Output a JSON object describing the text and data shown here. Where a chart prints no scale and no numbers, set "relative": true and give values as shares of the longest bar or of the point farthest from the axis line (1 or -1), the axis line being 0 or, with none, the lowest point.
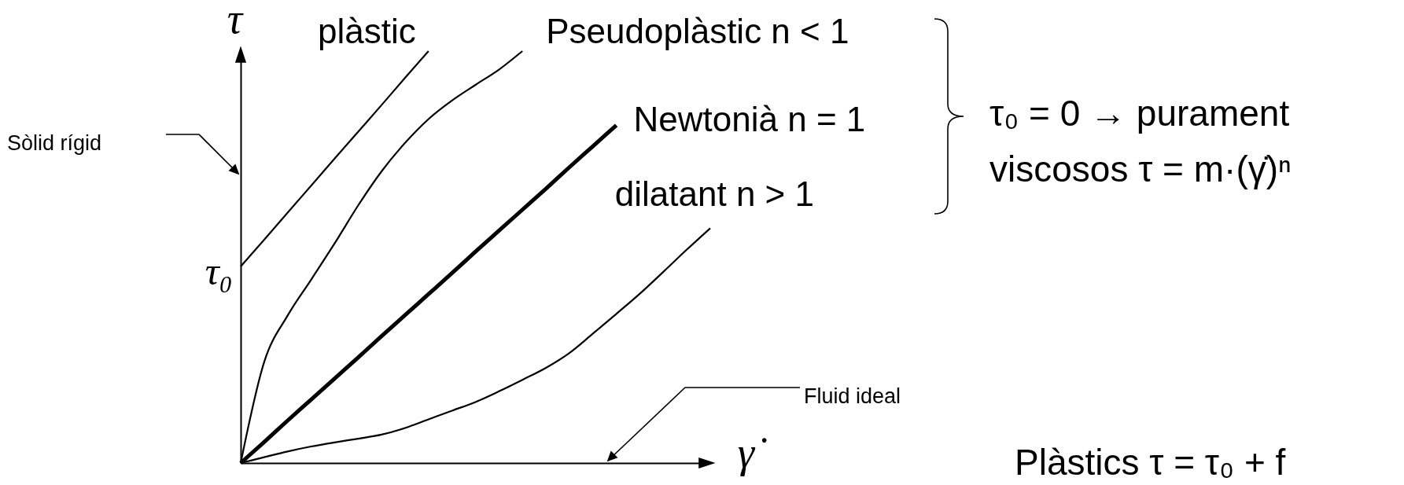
{
  "chart_data": {
    "type": "line",
    "xlabel": "γ̇",
    "ylabel": "τ",
    "relative": true,
    "tick_labels": false,
    "categories": [
      null,
      null,
      null,
      null,
      null,
      null,
      null,
      null,
      null,
      null,
      null,
      null,
      null,
      null,
      null,
      null,
      null,
      null,
      null,
      null,
      null
    ],
    "series": [
      {
        "name": "plàstic",
        "color": "#000000",
        "values": [
          0.477,
          0.542,
          0.608,
          0.673,
          0.739,
          0.804,
          0.869,
          0.935,
          1.0,
          null,
          null,
          null,
          null,
          null,
          null,
          null,
          null,
          null,
          null,
          null,
          null
        ]
      },
      {
        "name": "Pseudoplàstic n < 1",
        "color": "#000000",
        "values": [
          0,
          0.245,
          0.358,
          0.445,
          0.533,
          0.625,
          0.708,
          0.777,
          0.835,
          0.88,
          0.918,
          0.955,
          1.0,
          null,
          null,
          null,
          null,
          null,
          null,
          null,
          null
        ]
      },
      {
        "name": "Newtonià n = 1",
        "color": "#000000",
        "values": [
          0,
          0.051,
          0.103,
          0.154,
          0.205,
          0.256,
          0.308,
          0.359,
          0.41,
          0.461,
          0.513,
          0.564,
          0.615,
          0.666,
          0.718,
          0.769,
          0.82,
          null,
          null,
          null,
          null
        ]
      },
      {
        "name": "dilatant n > 1",
        "color": "#000000",
        "values": [
          0,
          0.014,
          0.028,
          0.04,
          0.05,
          0.059,
          0.069,
          0.085,
          0.106,
          0.127,
          0.148,
          0.174,
          0.202,
          0.231,
          0.267,
          0.314,
          0.362,
          0.411,
          0.464,
          0.518,
          0.57
        ]
      }
    ],
    "annotations": [
      "τ₀",
      "Sòlid rígid",
      "Fluid ideal",
      "τ₀ = 0 → purament viscosos τ = m·(γ̇)ⁿ",
      "Plàstics τ = τ₀ + f"
    ]
  }
}
